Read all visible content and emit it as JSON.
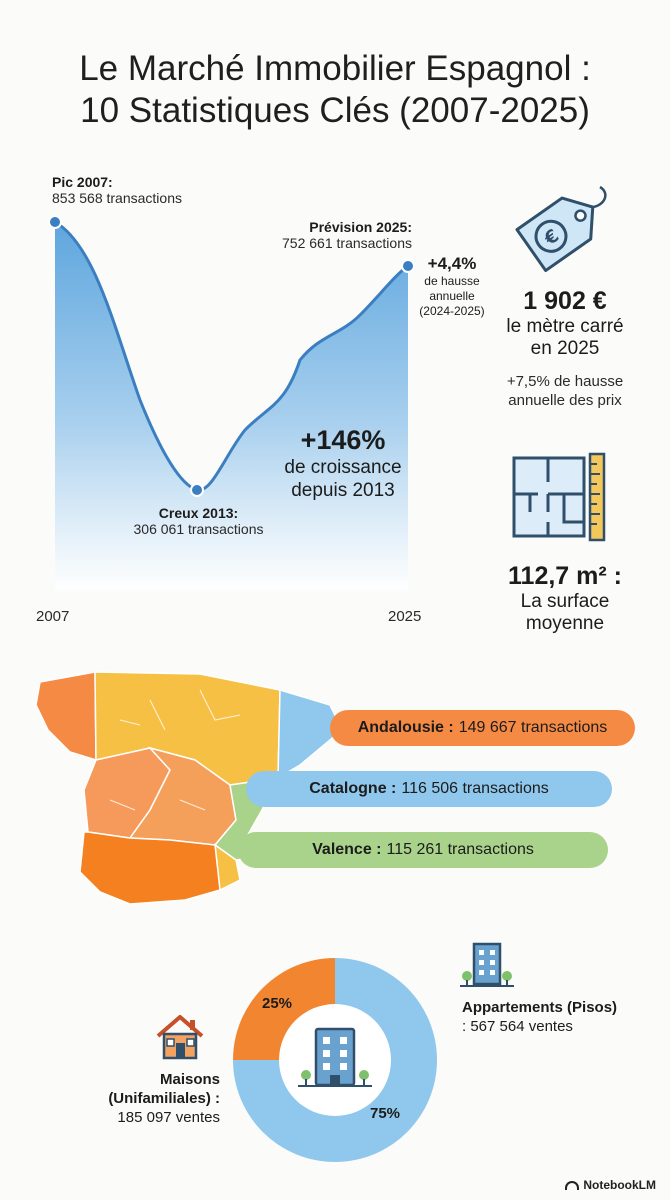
{
  "title": {
    "line1": "Le Marché Immobilier Espagnol :",
    "line2": "10 Statistiques Clés (2007-2025)"
  },
  "chart_data": {
    "type": "area",
    "x": [
      2007,
      2013,
      2025
    ],
    "values": [
      853568,
      306061,
      752661
    ],
    "annotations": {
      "peak": {
        "label": "Pic 2007:",
        "value": "853 568 transactions"
      },
      "trough": {
        "label": "Creux 2013:",
        "value": "306 061 transactions"
      },
      "forecast": {
        "label": "Prévision 2025:",
        "value": "752 661 transactions"
      },
      "annual_change": {
        "value": "+4,4%",
        "l1": "de hausse",
        "l2": "annuelle",
        "l3": "(2024-2025)"
      },
      "growth": {
        "value": "+146%",
        "l1": "de croissance",
        "l2": "depuis 2013"
      }
    },
    "x_ticks": [
      "2007",
      "2025"
    ],
    "colors": {
      "line": "#3b7fc0",
      "fill_top": "#5ea6de",
      "fill_bottom": "#ffffff"
    }
  },
  "price_stat": {
    "icon": "euro-price-tag-icon",
    "value": "1 902 €",
    "l1": "le mètre carré",
    "l2": "en 2025",
    "sub1": "+7,5% de hausse",
    "sub2": "annuelle des prix"
  },
  "surface_stat": {
    "icon": "floor-plan-ruler-icon",
    "value": "112,7 m² :",
    "l1": "La surface",
    "l2": "moyenne"
  },
  "regions": [
    {
      "name": "Andalousie :",
      "value": "149 667 transactions",
      "color": "#f58a45"
    },
    {
      "name": "Catalogne :",
      "value": "116 506 transactions",
      "color": "#8fc8ec"
    },
    {
      "name": "Valence :",
      "value": "115 261 transactions",
      "color": "#a9d38a"
    }
  ],
  "donut": {
    "type": "pie",
    "segments": [
      {
        "pct": 25,
        "label": "25%",
        "color": "#f2852f"
      },
      {
        "pct": 75,
        "label": "75%",
        "color": "#8fc8ec"
      }
    ],
    "houses": {
      "l1": "Maisons",
      "l2": "(Unifamiliales) :",
      "value": "185 097 ventes"
    },
    "apartments": {
      "l1": "Appartements (Pisos)",
      "value": ": 567 564 ventes"
    }
  },
  "footer": {
    "brand": "NotebookLM"
  }
}
